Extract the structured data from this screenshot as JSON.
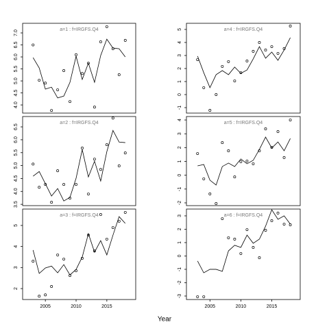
{
  "xlabel": "Year",
  "chart_data": [
    {
      "type": "scatter-line",
      "title": "a=1 : f=IRGFS.Q4",
      "x": [
        2003,
        2004,
        2005,
        2006,
        2007,
        2008,
        2009,
        2010,
        2011,
        2012,
        2013,
        2014,
        2015,
        2016,
        2017,
        2018
      ],
      "series": [
        {
          "color": "#000000",
          "mark": "circle",
          "values": [
            6.5,
            5.03,
            4.91,
            3.77,
            4.63,
            5.43,
            4.14,
            6.09,
            5.31,
            5.74,
            3.91,
            6.63,
            7.26,
            6.34,
            5.26,
            6.69
          ]
        },
        {
          "color": "#000000",
          "mark": "line",
          "values": [
            5.97,
            5.54,
            4.66,
            4.74,
            4.29,
            4.37,
            4.94,
            6.03,
            5.06,
            5.74,
            4.94,
            6.06,
            6.74,
            6.37,
            6.34,
            6.0
          ]
        }
      ],
      "xlim": [
        2001.3,
        2019.7
      ],
      "ylim": [
        3.66,
        7.4
      ],
      "yticks": [
        {
          "value": 4,
          "label": "4.0"
        },
        4.5,
        {
          "value": 5,
          "label": "5.0"
        },
        5.5,
        {
          "value": 6,
          "label": "6.0"
        },
        6.5,
        {
          "value": 7,
          "label": "7.0"
        }
      ]
    },
    {
      "type": "scatter-line",
      "title": "a=2 : f=IRGFS.Q4",
      "x": [
        2003,
        2004,
        2005,
        2006,
        2007,
        2008,
        2009,
        2010,
        2011,
        2012,
        2013,
        2014,
        2015,
        2016,
        2017,
        2018
      ],
      "series": [
        {
          "color": "#000000",
          "mark": "circle",
          "values": [
            5.06,
            4.16,
            4.27,
            3.58,
            4.8,
            4.27,
            3.74,
            4.27,
            5.68,
            3.9,
            5.25,
            4.85,
            5.81,
            6.84,
            4.99,
            5.49
          ]
        },
        {
          "color": "#000000",
          "mark": "line",
          "values": [
            4.59,
            4.77,
            4.3,
            3.82,
            4.11,
            3.63,
            3.77,
            4.51,
            5.62,
            4.56,
            5.17,
            4.4,
            5.54,
            6.36,
            5.91,
            5.89
          ]
        }
      ],
      "xlim": [
        2001.3,
        2019.7
      ],
      "ylim": [
        3.45,
        6.9
      ],
      "yticks": [
        3.5,
        {
          "value": 4,
          "label": "4.0"
        },
        4.5,
        {
          "value": 5,
          "label": "5.0"
        },
        5.5,
        {
          "value": 6,
          "label": "6.0"
        },
        6.5
      ]
    },
    {
      "type": "scatter-line",
      "title": "a=3 : f=IRGFS.Q4",
      "x": [
        2003,
        2004,
        2005,
        2006,
        2007,
        2008,
        2009,
        2010,
        2011,
        2012,
        2013,
        2014,
        2015,
        2016,
        2017,
        2018
      ],
      "series": [
        {
          "color": "#000000",
          "mark": "circle",
          "values": [
            3.3,
            1.64,
            1.7,
            2.1,
            3.6,
            3.4,
            2.62,
            2.85,
            3.44,
            4.54,
            3.79,
            5.52,
            4.35,
            4.9,
            5.2,
            5.62
          ]
        },
        {
          "color": "#000000",
          "mark": "line",
          "values": [
            3.83,
            2.72,
            2.98,
            3.07,
            2.75,
            3.14,
            2.65,
            2.91,
            3.5,
            4.61,
            3.73,
            4.28,
            3.6,
            4.54,
            5.42,
            5.1
          ]
        }
      ],
      "xlim": [
        2001.3,
        2019.7
      ],
      "ylim": [
        1.48,
        5.78
      ],
      "yticks": [
        2,
        3,
        4,
        5
      ],
      "xticks": [
        2005,
        2010,
        2015
      ]
    },
    {
      "type": "scatter-line",
      "title": "a=4 : f=IRGFS.Q4",
      "x": [
        2003,
        2004,
        2005,
        2006,
        2007,
        2008,
        2009,
        2010,
        2011,
        2012,
        2013,
        2014,
        2015,
        2016,
        2017,
        2018
      ],
      "series": [
        {
          "color": "#000000",
          "mark": "circle",
          "values": [
            2.68,
            0.53,
            -1.21,
            0.0,
            2.16,
            2.53,
            1.05,
            1.68,
            2.58,
            3.32,
            4.0,
            3.42,
            3.68,
            3.16,
            3.53,
            5.26
          ]
        },
        {
          "color": "#000000",
          "mark": "line",
          "values": [
            2.95,
            1.68,
            0.53,
            1.53,
            1.84,
            1.53,
            2.11,
            1.63,
            1.89,
            2.74,
            3.68,
            2.79,
            3.26,
            2.63,
            3.42,
            4.37
          ]
        }
      ],
      "xlim": [
        2001.2,
        2019.6
      ],
      "ylim": [
        -1.42,
        5.47
      ],
      "yticks": [
        -1,
        0,
        1,
        2,
        3,
        4,
        5
      ]
    },
    {
      "type": "scatter-line",
      "title": "a=5 : f=IRGFS.Q4",
      "x": [
        2003,
        2004,
        2005,
        2006,
        2007,
        2008,
        2009,
        2010,
        2011,
        2012,
        2013,
        2014,
        2015,
        2016,
        2017,
        2018
      ],
      "series": [
        {
          "color": "#000000",
          "mark": "circle",
          "values": [
            1.57,
            -0.26,
            -1.35,
            -2.05,
            2.36,
            1.77,
            -0.12,
            0.98,
            1.03,
            0.83,
            1.77,
            3.36,
            2.02,
            3.16,
            1.28,
            4.0
          ]
        },
        {
          "color": "#000000",
          "mark": "line",
          "values": [
            0.68,
            0.78,
            -0.36,
            -0.71,
            0.63,
            0.88,
            0.63,
            1.18,
            0.83,
            1.08,
            1.87,
            2.76,
            1.97,
            2.41,
            1.77,
            2.66
          ]
        }
      ],
      "xlim": [
        2001.2,
        2019.6
      ],
      "ylim": [
        -2.2,
        4.25
      ],
      "yticks": [
        -2,
        -1,
        0,
        1,
        2,
        3,
        4
      ]
    },
    {
      "type": "scatter-line",
      "title": "a=6 : f=IRGFS.Q4",
      "x": [
        2003,
        2004,
        2005,
        2006,
        2007,
        2008,
        2009,
        2010,
        2011,
        2012,
        2013,
        2014,
        2015,
        2016,
        2017,
        2018
      ],
      "series": [
        {
          "color": "#000000",
          "mark": "circle",
          "values": [
            -3.05,
            -3.05,
            null,
            null,
            2.79,
            1.36,
            1.26,
            0.18,
            1.97,
            0.64,
            -0.13,
            1.92,
            2.64,
            3.21,
            2.38,
            2.33
          ]
        },
        {
          "color": "#000000",
          "mark": "line",
          "values": [
            -0.38,
            -1.26,
            -1.0,
            -1.0,
            -1.15,
            0.38,
            0.8,
            0.64,
            1.56,
            0.95,
            1.26,
            2.23,
            3.46,
            2.74,
            3.0,
            2.38
          ]
        }
      ],
      "xlim": [
        2001.2,
        2019.6
      ],
      "ylim": [
        -3.26,
        3.51
      ],
      "yticks": [
        -3,
        -2,
        -1,
        0,
        1,
        2,
        3
      ],
      "xticks": [
        2005,
        2010,
        2015
      ]
    }
  ]
}
